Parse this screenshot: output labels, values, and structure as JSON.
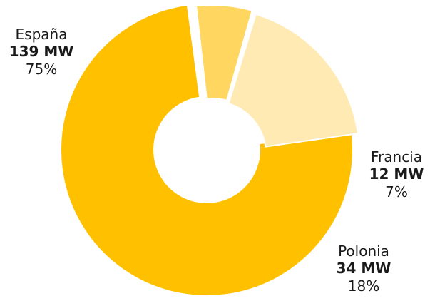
{
  "chart_data": {
    "type": "pie",
    "donut": true,
    "slices": [
      {
        "label": "España",
        "value_text": "139 MW",
        "percent_text": "75%",
        "value": 139,
        "color": "#ffc000"
      },
      {
        "label": "Francia",
        "value_text": "12 MW",
        "percent_text": "7%",
        "value": 12,
        "color": "#ffd660"
      },
      {
        "label": "Polonia",
        "value_text": "34 MW",
        "percent_text": "18%",
        "value": 34,
        "color": "#ffeab3"
      }
    ],
    "title": "",
    "legend": "none"
  }
}
